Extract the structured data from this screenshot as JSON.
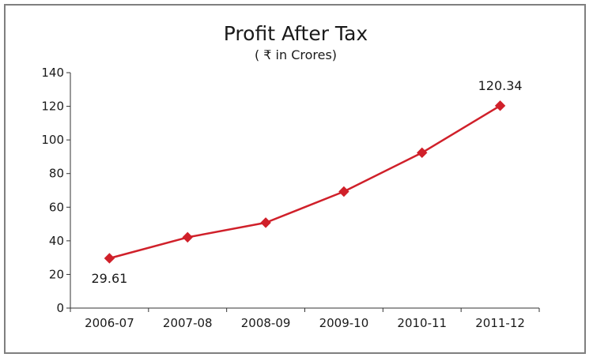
{
  "chart_data": {
    "type": "line",
    "title": "Profit After Tax",
    "subtitle": "( ₹ in Crores)",
    "xlabel": "",
    "ylabel": "",
    "categories": [
      "2006-07",
      "2007-08",
      "2008-09",
      "2009-10",
      "2010-11",
      "2011-12"
    ],
    "series": [
      {
        "name": "Profit After Tax",
        "values": [
          29.61,
          42.1,
          50.8,
          69.3,
          92.4,
          120.34
        ],
        "color": "#d0202a"
      }
    ],
    "data_labels": [
      {
        "index": 0,
        "text": "29.61",
        "position": "below"
      },
      {
        "index": 5,
        "text": "120.34",
        "position": "above"
      }
    ],
    "ylim": [
      0,
      140
    ],
    "yticks": [
      0,
      20,
      40,
      60,
      80,
      100,
      120,
      140
    ],
    "grid": false,
    "legend": "none"
  },
  "colors": {
    "axis": "#333333",
    "frame": "#7f7f7f",
    "line": "#d0202a"
  }
}
